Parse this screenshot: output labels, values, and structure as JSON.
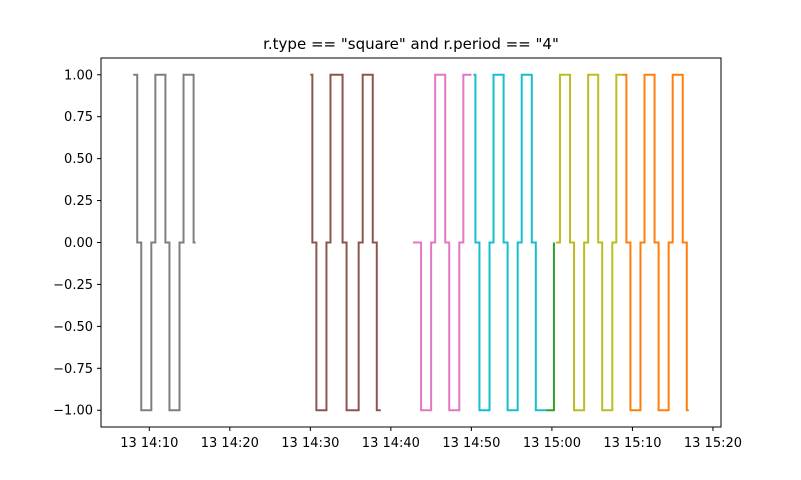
{
  "chart_data": {
    "type": "line",
    "title": "r.type == \"square\" and r.period == \"4\"",
    "xlabel": "",
    "ylabel": "",
    "step": "post",
    "x_unit": "time of day on day 13 (HH:MM)",
    "xlim": [
      "14:04:00",
      "15:21:00"
    ],
    "ylim": [
      -1.1,
      1.1
    ],
    "x_ticks": [
      {
        "t": "14:10",
        "label": "13 14:10"
      },
      {
        "t": "14:20",
        "label": "13 14:20"
      },
      {
        "t": "14:30",
        "label": "13 14:30"
      },
      {
        "t": "14:40",
        "label": "13 14:40"
      },
      {
        "t": "14:50",
        "label": "13 14:50"
      },
      {
        "t": "15:00",
        "label": "13 15:00"
      },
      {
        "t": "15:10",
        "label": "13 15:10"
      },
      {
        "t": "15:20",
        "label": "13 15:20"
      }
    ],
    "y_ticks": [
      {
        "v": 1.0,
        "label": "1.00"
      },
      {
        "v": 0.75,
        "label": "0.75"
      },
      {
        "v": 0.5,
        "label": "0.50"
      },
      {
        "v": 0.25,
        "label": "0.25"
      },
      {
        "v": 0.0,
        "label": "0.00"
      },
      {
        "v": -0.25,
        "label": "−0.25"
      },
      {
        "v": -0.5,
        "label": "−0.50"
      },
      {
        "v": -0.75,
        "label": "−0.75"
      },
      {
        "v": -1.0,
        "label": "−1.00"
      }
    ],
    "grid": false,
    "series": [
      {
        "color": "#7f7f7f",
        "points": [
          [
            "14:08:00",
            1
          ],
          [
            "14:08:30",
            0
          ],
          [
            "14:09:00",
            -1
          ],
          [
            "14:10:15",
            0
          ],
          [
            "14:10:45",
            1
          ],
          [
            "14:12:00",
            0
          ],
          [
            "14:12:30",
            -1
          ],
          [
            "14:13:45",
            0
          ],
          [
            "14:14:15",
            1
          ],
          [
            "14:15:30",
            0
          ],
          [
            "14:15:45",
            0
          ]
        ]
      },
      {
        "color": "#8c564b",
        "points": [
          [
            "14:30:00",
            1
          ],
          [
            "14:30:15",
            0
          ],
          [
            "14:30:45",
            -1
          ],
          [
            "14:32:00",
            0
          ],
          [
            "14:32:30",
            1
          ],
          [
            "14:34:00",
            0
          ],
          [
            "14:34:30",
            -1
          ],
          [
            "14:36:00",
            0
          ],
          [
            "14:36:30",
            1
          ],
          [
            "14:37:45",
            0
          ],
          [
            "14:38:15",
            -1
          ],
          [
            "14:38:45",
            -1
          ]
        ]
      },
      {
        "color": "#e377c2",
        "points": [
          [
            "14:42:45",
            0
          ],
          [
            "14:43:15",
            0
          ],
          [
            "14:43:45",
            -1
          ],
          [
            "14:45:00",
            0
          ],
          [
            "14:45:30",
            1
          ],
          [
            "14:46:45",
            0
          ],
          [
            "14:47:15",
            -1
          ],
          [
            "14:48:30",
            0
          ],
          [
            "14:49:00",
            1
          ],
          [
            "14:50:00",
            1
          ]
        ]
      },
      {
        "color": "#17becf",
        "points": [
          [
            "14:50:15",
            1
          ],
          [
            "14:50:30",
            0
          ],
          [
            "14:51:00",
            -1
          ],
          [
            "14:52:15",
            0
          ],
          [
            "14:52:45",
            1
          ],
          [
            "14:54:00",
            0
          ],
          [
            "14:54:30",
            -1
          ],
          [
            "14:55:45",
            0
          ],
          [
            "14:56:15",
            1
          ],
          [
            "14:57:30",
            0
          ],
          [
            "14:58:00",
            -1
          ],
          [
            "14:59:15",
            -1
          ]
        ]
      },
      {
        "color": "#2ca02c",
        "points": [
          [
            "14:59:15",
            -1
          ],
          [
            "15:00:00",
            -1
          ],
          [
            "15:00:15",
            0
          ]
        ]
      },
      {
        "color": "#bcbd22",
        "points": [
          [
            "15:00:30",
            0
          ],
          [
            "15:01:00",
            1
          ],
          [
            "15:02:15",
            0
          ],
          [
            "15:02:45",
            -1
          ],
          [
            "15:04:00",
            0
          ],
          [
            "15:04:30",
            1
          ],
          [
            "15:05:45",
            0
          ],
          [
            "15:06:15",
            -1
          ],
          [
            "15:07:30",
            0
          ],
          [
            "15:08:00",
            1
          ],
          [
            "15:08:45",
            1
          ]
        ]
      },
      {
        "color": "#ff7f0e",
        "points": [
          [
            "15:08:45",
            1
          ],
          [
            "15:09:15",
            0
          ],
          [
            "15:09:45",
            -1
          ],
          [
            "15:11:00",
            0
          ],
          [
            "15:11:30",
            1
          ],
          [
            "15:12:45",
            0
          ],
          [
            "15:13:15",
            -1
          ],
          [
            "15:14:30",
            0
          ],
          [
            "15:15:00",
            1
          ],
          [
            "15:16:15",
            0
          ],
          [
            "15:16:45",
            -1
          ],
          [
            "15:17:00",
            -1
          ]
        ]
      }
    ]
  }
}
